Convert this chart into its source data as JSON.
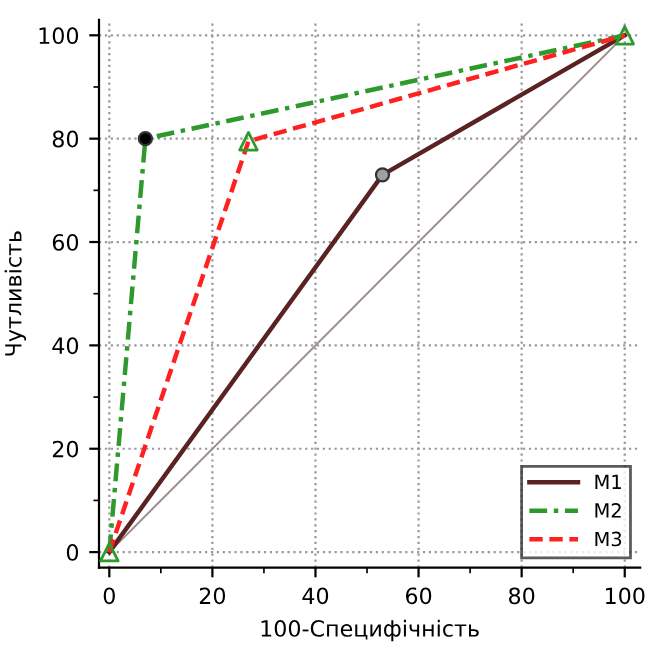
{
  "chart_data": {
    "type": "line",
    "xlabel": "100-Специфічність",
    "ylabel": "Чутливість",
    "xlim": [
      -2,
      103
    ],
    "ylim": [
      -3,
      103
    ],
    "xticks": [
      0,
      20,
      40,
      60,
      80,
      100
    ],
    "yticks": [
      0,
      20,
      40,
      60,
      80,
      100
    ],
    "grid": true,
    "legend": "bottom right",
    "series": [
      {
        "x": [
          0,
          100
        ],
        "values": [
          0,
          100
        ],
        "color": "#a08a8a",
        "marker": "none",
        "line_style": "solid"
      },
      {
        "name": "M1",
        "x": [
          0,
          53,
          100
        ],
        "values": [
          0,
          73,
          100
        ],
        "color": "#5a2222",
        "marker": "none",
        "line_style": "solid"
      },
      {
        "name": "M2",
        "x": [
          0,
          7,
          100
        ],
        "values": [
          0,
          80,
          100
        ],
        "color": "#2e9a2e",
        "marker": "none",
        "line_style": "dashdot"
      },
      {
        "name": "M3",
        "x": [
          0,
          27,
          100
        ],
        "values": [
          0,
          79.5,
          100
        ],
        "color": "#ff2020",
        "marker": "none",
        "line_style": "dashed"
      },
      {
        "type": "scatter",
        "x": [
          53
        ],
        "values": [
          73
        ],
        "color": "#a0a0a0",
        "marker": "circle"
      },
      {
        "type": "scatter",
        "x": [
          7
        ],
        "values": [
          80
        ],
        "color": "#000000",
        "marker": "circle"
      },
      {
        "type": "scatter",
        "x": [
          0,
          27,
          100
        ],
        "values": [
          0,
          79.5,
          100
        ],
        "color": "none",
        "marker": "triangle"
      }
    ]
  }
}
